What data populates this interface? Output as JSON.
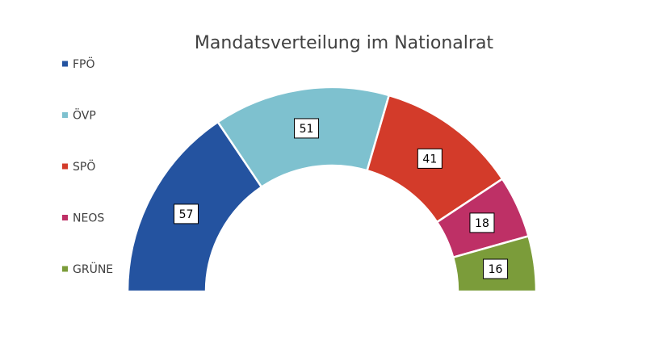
{
  "chart_data": {
    "type": "pie",
    "subtype": "half-donut",
    "title": "Mandatsverteilung im Nationalrat",
    "legend_position": "left",
    "categories": [
      "FPÖ",
      "ÖVP",
      "SPÖ",
      "NEOS",
      "GRÜNE"
    ],
    "values": [
      57,
      51,
      41,
      18,
      16
    ],
    "colors": [
      "#2453a0",
      "#7ec1cf",
      "#d33b2a",
      "#be3066",
      "#7b9c3a"
    ]
  }
}
